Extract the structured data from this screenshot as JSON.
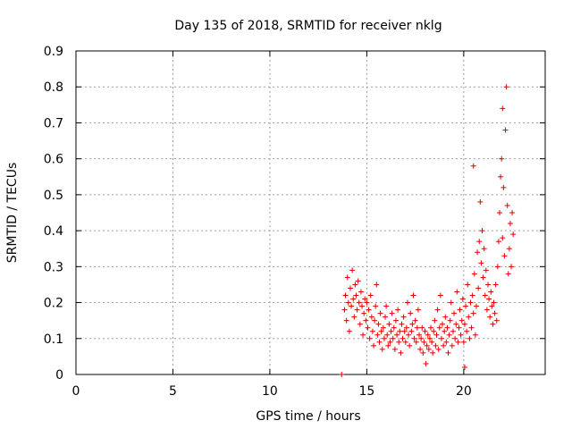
{
  "chart_data": {
    "type": "scatter",
    "title": "Day 135 of 2018, SRMTID for receiver nklg",
    "xlabel": "GPS time / hours",
    "ylabel": "SRMTID / TECUs",
    "xlim": [
      0,
      24.2
    ],
    "ylim": [
      0,
      0.9
    ],
    "x_ticks": [
      0,
      5,
      10,
      15,
      20
    ],
    "y_ticks": [
      0,
      0.1,
      0.2,
      0.3,
      0.4,
      0.5,
      0.6,
      0.7,
      0.8,
      0.9
    ],
    "x_tick_labels": [
      "0",
      "5",
      "10",
      "15",
      "20"
    ],
    "y_tick_labels": [
      "0",
      "0.1",
      "0.2",
      "0.3",
      "0.4",
      "0.5",
      "0.6",
      "0.7",
      "0.8",
      "0.9"
    ],
    "grid": true,
    "marker": "+",
    "color": "#e00000",
    "series": [
      {
        "name": "SRMTID",
        "points": [
          [
            13.7,
            0.0
          ],
          [
            13.85,
            0.18
          ],
          [
            13.9,
            0.22
          ],
          [
            13.95,
            0.15
          ],
          [
            14.0,
            0.27
          ],
          [
            14.05,
            0.2
          ],
          [
            14.1,
            0.12
          ],
          [
            14.15,
            0.24
          ],
          [
            14.2,
            0.19
          ],
          [
            14.25,
            0.29
          ],
          [
            14.3,
            0.21
          ],
          [
            14.35,
            0.16
          ],
          [
            14.4,
            0.25
          ],
          [
            14.45,
            0.22
          ],
          [
            14.5,
            0.18
          ],
          [
            14.55,
            0.26
          ],
          [
            14.6,
            0.2
          ],
          [
            14.65,
            0.14
          ],
          [
            14.7,
            0.23
          ],
          [
            14.75,
            0.19
          ],
          [
            14.8,
            0.11
          ],
          [
            14.85,
            0.17
          ],
          [
            14.9,
            0.21
          ],
          [
            14.95,
            0.15
          ],
          [
            15.0,
            0.2
          ],
          [
            15.05,
            0.13
          ],
          [
            15.1,
            0.18
          ],
          [
            15.15,
            0.1
          ],
          [
            15.2,
            0.22
          ],
          [
            15.25,
            0.16
          ],
          [
            15.3,
            0.12
          ],
          [
            15.35,
            0.08
          ],
          [
            15.4,
            0.15
          ],
          [
            15.45,
            0.19
          ],
          [
            15.5,
            0.25
          ],
          [
            15.55,
            0.11
          ],
          [
            15.6,
            0.14
          ],
          [
            15.65,
            0.09
          ],
          [
            15.7,
            0.17
          ],
          [
            15.75,
            0.12
          ],
          [
            15.8,
            0.07
          ],
          [
            15.85,
            0.13
          ],
          [
            15.9,
            0.1
          ],
          [
            15.95,
            0.16
          ],
          [
            16.0,
            0.19
          ],
          [
            16.05,
            0.11
          ],
          [
            16.1,
            0.08
          ],
          [
            16.15,
            0.14
          ],
          [
            16.2,
            0.09
          ],
          [
            16.25,
            0.12
          ],
          [
            16.3,
            0.17
          ],
          [
            16.35,
            0.1
          ],
          [
            16.4,
            0.13
          ],
          [
            16.45,
            0.07
          ],
          [
            16.5,
            0.15
          ],
          [
            16.55,
            0.11
          ],
          [
            16.6,
            0.18
          ],
          [
            16.65,
            0.09
          ],
          [
            16.7,
            0.12
          ],
          [
            16.75,
            0.06
          ],
          [
            16.8,
            0.14
          ],
          [
            16.85,
            0.1
          ],
          [
            16.9,
            0.16
          ],
          [
            16.95,
            0.12
          ],
          [
            17.0,
            0.09
          ],
          [
            17.05,
            0.13
          ],
          [
            17.1,
            0.2
          ],
          [
            17.15,
            0.11
          ],
          [
            17.2,
            0.08
          ],
          [
            17.25,
            0.17
          ],
          [
            17.3,
            0.12
          ],
          [
            17.35,
            0.14
          ],
          [
            17.4,
            0.22
          ],
          [
            17.45,
            0.1
          ],
          [
            17.5,
            0.15
          ],
          [
            17.55,
            0.09
          ],
          [
            17.6,
            0.13
          ],
          [
            17.65,
            0.18
          ],
          [
            17.7,
            0.11
          ],
          [
            17.75,
            0.07
          ],
          [
            17.8,
            0.1
          ],
          [
            17.85,
            0.13
          ],
          [
            17.9,
            0.06
          ],
          [
            17.95,
            0.09
          ],
          [
            18.0,
            0.12
          ],
          [
            18.05,
            0.03
          ],
          [
            18.1,
            0.08
          ],
          [
            18.15,
            0.11
          ],
          [
            18.2,
            0.07
          ],
          [
            18.25,
            0.1
          ],
          [
            18.3,
            0.13
          ],
          [
            18.35,
            0.09
          ],
          [
            18.4,
            0.06
          ],
          [
            18.45,
            0.12
          ],
          [
            18.5,
            0.15
          ],
          [
            18.55,
            0.08
          ],
          [
            18.6,
            0.11
          ],
          [
            18.65,
            0.18
          ],
          [
            18.7,
            0.07
          ],
          [
            18.75,
            0.13
          ],
          [
            18.8,
            0.22
          ],
          [
            18.85,
            0.1
          ],
          [
            18.9,
            0.14
          ],
          [
            18.95,
            0.08
          ],
          [
            19.0,
            0.12
          ],
          [
            19.05,
            0.16
          ],
          [
            19.1,
            0.09
          ],
          [
            19.15,
            0.13
          ],
          [
            19.2,
            0.06
          ],
          [
            19.25,
            0.11
          ],
          [
            19.3,
            0.15
          ],
          [
            19.35,
            0.2
          ],
          [
            19.4,
            0.08
          ],
          [
            19.45,
            0.12
          ],
          [
            19.5,
            0.17
          ],
          [
            19.55,
            0.1
          ],
          [
            19.6,
            0.14
          ],
          [
            19.65,
            0.23
          ],
          [
            19.7,
            0.09
          ],
          [
            19.75,
            0.13
          ],
          [
            19.8,
            0.18
          ],
          [
            19.85,
            0.11
          ],
          [
            19.9,
            0.15
          ],
          [
            19.95,
            0.21
          ],
          [
            20.0,
            0.09
          ],
          [
            20.05,
            0.14
          ],
          [
            20.1,
            0.19
          ],
          [
            20.15,
            0.12
          ],
          [
            20.2,
            0.25
          ],
          [
            20.25,
            0.16
          ],
          [
            20.3,
            0.1
          ],
          [
            20.35,
            0.2
          ],
          [
            20.4,
            0.13
          ],
          [
            20.45,
            0.22
          ],
          [
            20.5,
            0.17
          ],
          [
            20.55,
            0.28
          ],
          [
            20.6,
            0.11
          ],
          [
            20.65,
            0.19
          ],
          [
            20.7,
            0.34
          ],
          [
            20.75,
            0.24
          ],
          [
            20.8,
            0.37
          ],
          [
            20.85,
            0.48
          ],
          [
            20.9,
            0.31
          ],
          [
            20.95,
            0.4
          ],
          [
            21.0,
            0.27
          ],
          [
            21.05,
            0.35
          ],
          [
            21.1,
            0.22
          ],
          [
            21.15,
            0.29
          ],
          [
            21.2,
            0.18
          ],
          [
            21.25,
            0.25
          ],
          [
            21.3,
            0.21
          ],
          [
            21.35,
            0.16
          ],
          [
            21.4,
            0.23
          ],
          [
            21.45,
            0.19
          ],
          [
            21.5,
            0.14
          ],
          [
            21.55,
            0.2
          ],
          [
            21.6,
            0.17
          ],
          [
            21.65,
            0.25
          ],
          [
            21.7,
            0.15
          ],
          [
            21.75,
            0.3
          ],
          [
            21.8,
            0.37
          ],
          [
            21.85,
            0.45
          ],
          [
            21.9,
            0.55
          ],
          [
            21.95,
            0.6
          ],
          [
            22.0,
            0.38
          ],
          [
            22.05,
            0.52
          ],
          [
            22.1,
            0.33
          ],
          [
            22.15,
            0.68
          ],
          [
            22.2,
            0.8
          ],
          [
            22.25,
            0.47
          ],
          [
            22.3,
            0.28
          ],
          [
            22.35,
            0.35
          ],
          [
            22.4,
            0.42
          ],
          [
            22.45,
            0.3
          ],
          [
            22.5,
            0.45
          ],
          [
            22.55,
            0.39
          ],
          [
            20.05,
            0.02
          ],
          [
            20.5,
            0.58
          ],
          [
            22.0,
            0.74
          ]
        ]
      }
    ]
  }
}
